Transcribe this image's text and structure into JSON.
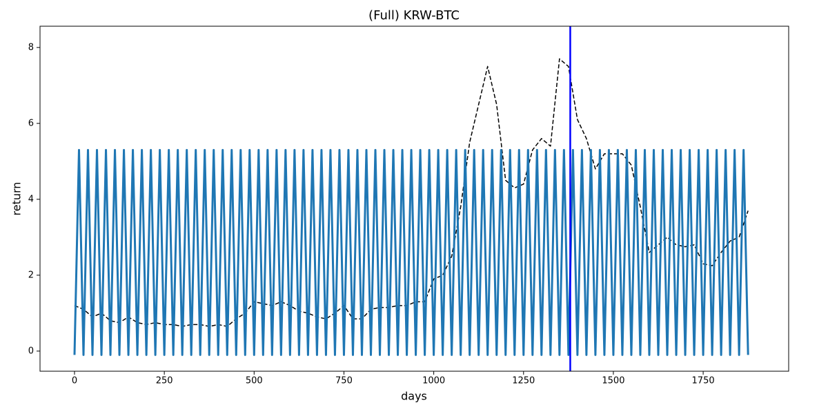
{
  "chart_data": {
    "type": "line",
    "title": "(Full) KRW-BTC",
    "x_label": "days",
    "y_label": "return",
    "xlim": [
      -96,
      1988
    ],
    "ylim": [
      -0.53,
      8.56
    ],
    "xticks": [
      0,
      250,
      500,
      750,
      1000,
      1250,
      1500,
      1750
    ],
    "yticks": [
      0,
      2,
      4,
      6,
      8
    ],
    "series": [
      {
        "color": "#000000",
        "style": "dashed",
        "linewidth": 1.5,
        "x": [
          0,
          25,
          50,
          75,
          100,
          125,
          150,
          175,
          200,
          225,
          250,
          275,
          300,
          325,
          350,
          375,
          400,
          425,
          450,
          475,
          500,
          525,
          550,
          575,
          600,
          625,
          650,
          675,
          700,
          725,
          750,
          775,
          800,
          825,
          850,
          875,
          900,
          925,
          950,
          975,
          1000,
          1025,
          1050,
          1075,
          1100,
          1125,
          1150,
          1175,
          1200,
          1225,
          1250,
          1275,
          1300,
          1325,
          1350,
          1375,
          1400,
          1425,
          1450,
          1475,
          1500,
          1525,
          1550,
          1575,
          1600,
          1625,
          1650,
          1675,
          1700,
          1725,
          1750,
          1775,
          1800,
          1825,
          1850,
          1875
        ],
        "values": [
          1.2,
          1.1,
          0.9,
          1.0,
          0.8,
          0.75,
          0.9,
          0.75,
          0.7,
          0.75,
          0.7,
          0.7,
          0.65,
          0.7,
          0.7,
          0.65,
          0.7,
          0.65,
          0.85,
          1.0,
          1.3,
          1.25,
          1.2,
          1.3,
          1.2,
          1.05,
          1.0,
          0.9,
          0.85,
          1.0,
          1.2,
          0.85,
          0.85,
          1.1,
          1.15,
          1.15,
          1.2,
          1.2,
          1.3,
          1.3,
          1.9,
          2.0,
          2.5,
          3.8,
          5.5,
          6.5,
          7.5,
          6.5,
          4.5,
          4.3,
          4.4,
          5.3,
          5.6,
          5.4,
          7.7,
          7.5,
          6.1,
          5.6,
          4.8,
          5.2,
          5.2,
          5.2,
          4.9,
          3.8,
          2.6,
          2.8,
          3.0,
          2.8,
          2.75,
          2.8,
          2.3,
          2.25,
          2.6,
          2.9,
          3.0,
          3.7
        ]
      },
      {
        "color": "#1f77b4",
        "style": "solid",
        "linewidth": 3,
        "x": [
          0,
          12.5,
          25,
          37.5,
          50,
          62.5,
          75,
          87.5,
          100,
          112.5,
          125,
          137.5,
          150,
          162.5,
          175,
          187.5,
          200,
          212.5,
          225,
          237.5,
          250,
          262.5,
          275,
          287.5,
          300,
          312.5,
          325,
          337.5,
          350,
          362.5,
          375,
          387.5,
          400,
          412.5,
          425,
          437.5,
          450,
          462.5,
          475,
          487.5,
          500,
          512.5,
          525,
          537.5,
          550,
          562.5,
          575,
          587.5,
          600,
          612.5,
          625,
          637.5,
          650,
          662.5,
          675,
          687.5,
          700,
          712.5,
          725,
          737.5,
          750,
          762.5,
          775,
          787.5,
          800,
          812.5,
          825,
          837.5,
          850,
          862.5,
          875,
          887.5,
          900,
          912.5,
          925,
          937.5,
          950,
          962.5,
          975,
          987.5,
          1000,
          1012.5,
          1025,
          1037.5,
          1050,
          1062.5,
          1075,
          1087.5,
          1100,
          1112.5,
          1125,
          1137.5,
          1150,
          1162.5,
          1175,
          1187.5,
          1200,
          1212.5,
          1225,
          1237.5,
          1250,
          1262.5,
          1275,
          1287.5,
          1300,
          1312.5,
          1325,
          1337.5,
          1350,
          1362.5,
          1375,
          1387.5,
          1400,
          1412.5,
          1425,
          1437.5,
          1450,
          1462.5,
          1475,
          1487.5,
          1500,
          1512.5,
          1525,
          1537.5,
          1550,
          1562.5,
          1575,
          1587.5,
          1600,
          1612.5,
          1625,
          1637.5,
          1650,
          1662.5,
          1675,
          1687.5,
          1700,
          1712.5,
          1725,
          1737.5,
          1750,
          1762.5,
          1775,
          1787.5,
          1800,
          1812.5,
          1825,
          1837.5,
          1850,
          1862.5,
          1875
        ],
        "values": [
          -0.1,
          5.3,
          -0.1,
          5.3,
          -0.1,
          5.3,
          -0.1,
          5.3,
          -0.1,
          5.3,
          -0.1,
          5.3,
          -0.1,
          5.3,
          -0.1,
          5.3,
          -0.1,
          5.3,
          -0.1,
          5.3,
          -0.1,
          5.3,
          -0.1,
          5.3,
          -0.1,
          5.3,
          -0.1,
          5.3,
          -0.1,
          5.3,
          -0.1,
          5.3,
          -0.1,
          5.3,
          -0.1,
          5.3,
          -0.1,
          5.3,
          -0.1,
          5.3,
          -0.1,
          5.3,
          -0.1,
          5.3,
          -0.1,
          5.3,
          -0.1,
          5.3,
          -0.1,
          5.3,
          -0.1,
          5.3,
          -0.1,
          5.3,
          -0.1,
          5.3,
          -0.1,
          5.3,
          -0.1,
          5.3,
          -0.1,
          5.3,
          -0.1,
          5.3,
          -0.1,
          5.3,
          -0.1,
          5.3,
          -0.1,
          5.3,
          -0.1,
          5.3,
          -0.1,
          5.3,
          -0.1,
          5.3,
          -0.1,
          5.3,
          -0.1,
          5.3,
          -0.1,
          5.3,
          -0.1,
          5.3,
          -0.1,
          5.3,
          -0.1,
          5.3,
          -0.1,
          5.3,
          -0.1,
          5.3,
          -0.1,
          5.3,
          -0.1,
          5.3,
          -0.1,
          5.3,
          -0.1,
          5.3,
          -0.1,
          5.3,
          -0.1,
          5.3,
          -0.1,
          5.3,
          -0.1,
          5.3,
          -0.1,
          5.3,
          -0.1,
          5.3,
          -0.1,
          5.3,
          -0.1,
          5.3,
          -0.1,
          5.3,
          -0.1,
          5.3,
          -0.1,
          5.3,
          -0.1,
          5.3,
          -0.1,
          5.3,
          -0.1,
          5.3,
          -0.1,
          5.3,
          -0.1,
          5.3,
          -0.1,
          5.3,
          -0.1,
          5.3,
          -0.1,
          5.3,
          -0.1,
          5.3,
          -0.1,
          5.3,
          -0.1,
          5.3,
          -0.1,
          5.3,
          -0.1,
          5.3,
          -0.1,
          5.3,
          -0.1
        ]
      }
    ],
    "vlines": [
      {
        "x": 1380,
        "color": "#0000ff"
      }
    ]
  }
}
